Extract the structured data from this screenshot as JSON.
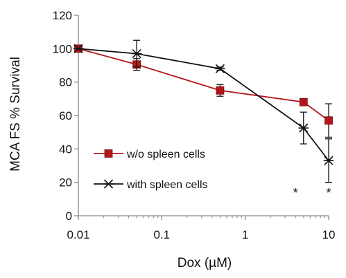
{
  "chart_data": {
    "type": "line",
    "xlabel": "Dox (µM)",
    "ylabel": "MCA FS % Survival",
    "xscale": "log",
    "xlim": [
      0.01,
      10
    ],
    "ylim": [
      0,
      120
    ],
    "x_ticks": [
      0.01,
      0.1,
      1,
      10
    ],
    "x_tick_labels": [
      "0.01",
      "0.1",
      "1",
      "10"
    ],
    "y_ticks": [
      0,
      20,
      40,
      60,
      80,
      100,
      120
    ],
    "y_tick_labels": [
      "0",
      "20",
      "40",
      "60",
      "80",
      "100",
      "120"
    ],
    "grid": false,
    "legend_position": "bottom-left",
    "series": [
      {
        "name": "w/o spleen cells",
        "color": "#b3171b",
        "marker": "square",
        "x": [
          0.01,
          0.05,
          0.5,
          5,
          10
        ],
        "y": [
          100,
          90.5,
          75,
          68,
          57
        ],
        "err": [
          0,
          3.5,
          3.5,
          1.5,
          10
        ]
      },
      {
        "name": "with spleen cells",
        "color": "#111111",
        "marker": "asterisk",
        "x": [
          0.01,
          0.05,
          0.5,
          5,
          10
        ],
        "y": [
          100,
          97,
          88,
          52.5,
          33
        ],
        "err": [
          0,
          8,
          1,
          9.5,
          13
        ]
      }
    ],
    "annotations": [
      {
        "text": "*",
        "x": 4,
        "y": 17
      },
      {
        "text": "*",
        "x": 10,
        "y": 17
      }
    ]
  }
}
